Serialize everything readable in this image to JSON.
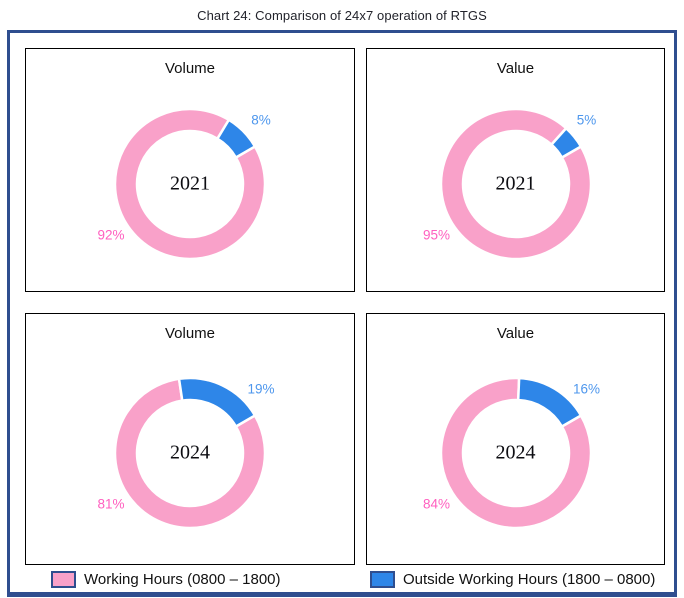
{
  "title": "Chart 24: Comparison of 24x7 operation of RTGS",
  "colors": {
    "working_hours": "#F9A1C9",
    "outside_hours": "#2E86E8",
    "working_label": "#FF5FBF",
    "outside_label": "#4E97ED",
    "frame_border": "#2F4E8F",
    "panel_border": "#000000"
  },
  "chart_data": [
    {
      "type": "donut",
      "title": "Volume",
      "center_label": "2021",
      "start_angle_deg": 60,
      "series": [
        {
          "name": "Working Hours (0800 – 1800)",
          "value": 92,
          "label": "92%"
        },
        {
          "name": "Outside Working Hours (1800 – 0800)",
          "value": 8,
          "label": "8%"
        }
      ]
    },
    {
      "type": "donut",
      "title": "Value",
      "center_label": "2021",
      "start_angle_deg": 60,
      "series": [
        {
          "name": "Working Hours (0800 – 1800)",
          "value": 95,
          "label": "95%"
        },
        {
          "name": "Outside Working Hours (1800 – 0800)",
          "value": 5,
          "label": "5%"
        }
      ]
    },
    {
      "type": "donut",
      "title": "Volume",
      "center_label": "2024",
      "start_angle_deg": 60,
      "series": [
        {
          "name": "Working Hours (0800 – 1800)",
          "value": 81,
          "label": "81%"
        },
        {
          "name": "Outside Working Hours (1800 – 0800)",
          "value": 19,
          "label": "19%"
        }
      ]
    },
    {
      "type": "donut",
      "title": "Value",
      "center_label": "2024",
      "start_angle_deg": 60,
      "series": [
        {
          "name": "Working Hours (0800 – 1800)",
          "value": 84,
          "label": "84%"
        },
        {
          "name": "Outside Working Hours (1800 – 0800)",
          "value": 16,
          "label": "16%"
        }
      ]
    }
  ],
  "legend": {
    "items": [
      {
        "label": "Working Hours (0800 – 1800)"
      },
      {
        "label": "Outside Working Hours (1800 – 0800)"
      }
    ]
  }
}
